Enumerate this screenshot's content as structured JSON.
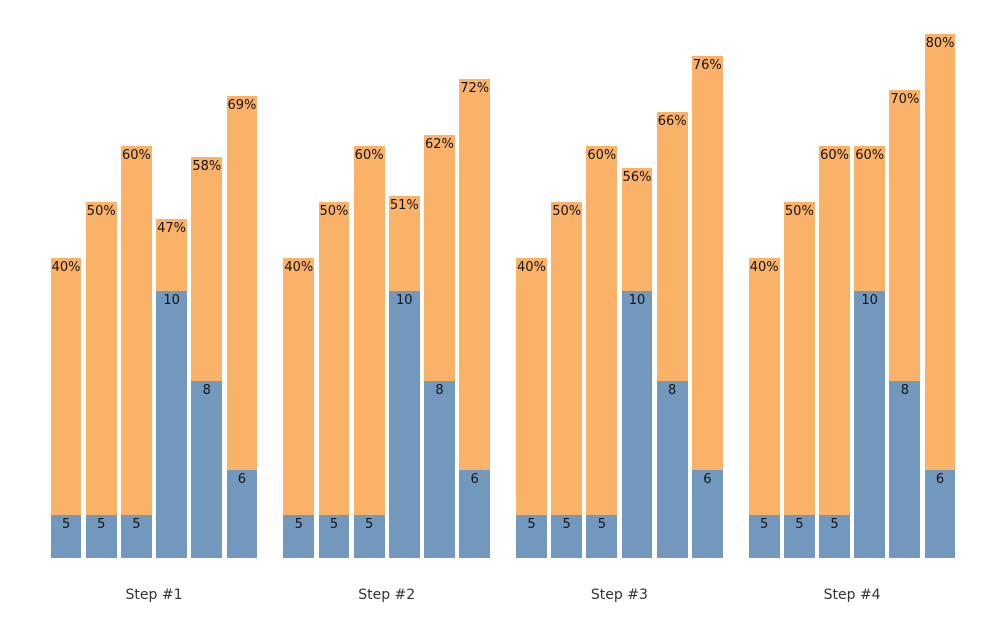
{
  "chart_data": {
    "type": "bar",
    "subtype": "grouped-stacked-dual-encoding",
    "title": "",
    "xlabel": "",
    "ylabel": "",
    "layout_hints": {
      "grid": false,
      "legend": false,
      "axes_visible": false,
      "background": "#ffffff",
      "bars_per_group": 6,
      "percent_range_shown": [
        40,
        80
      ]
    },
    "colors": {
      "count_segment": "#7299bd",
      "percent_segment": "#fab269",
      "segment_label": "#141414",
      "group_label": "#333333"
    },
    "groups": [
      {
        "label": "Step #1",
        "bars": [
          {
            "count": 5,
            "count_label": "5",
            "percent": 40,
            "percent_label": "40%"
          },
          {
            "count": 5,
            "count_label": "5",
            "percent": 50,
            "percent_label": "50%"
          },
          {
            "count": 5,
            "count_label": "5",
            "percent": 60,
            "percent_label": "60%"
          },
          {
            "count": 10,
            "count_label": "10",
            "percent": 47,
            "percent_label": "47%"
          },
          {
            "count": 8,
            "count_label": "8",
            "percent": 58,
            "percent_label": "58%"
          },
          {
            "count": 6,
            "count_label": "6",
            "percent": 69,
            "percent_label": "69%"
          }
        ]
      },
      {
        "label": "Step #2",
        "bars": [
          {
            "count": 5,
            "count_label": "5",
            "percent": 40,
            "percent_label": "40%"
          },
          {
            "count": 5,
            "count_label": "5",
            "percent": 50,
            "percent_label": "50%"
          },
          {
            "count": 5,
            "count_label": "5",
            "percent": 60,
            "percent_label": "60%"
          },
          {
            "count": 10,
            "count_label": "10",
            "percent": 51,
            "percent_label": "51%"
          },
          {
            "count": 8,
            "count_label": "8",
            "percent": 62,
            "percent_label": "62%"
          },
          {
            "count": 6,
            "count_label": "6",
            "percent": 72,
            "percent_label": "72%"
          }
        ]
      },
      {
        "label": "Step #3",
        "bars": [
          {
            "count": 5,
            "count_label": "5",
            "percent": 40,
            "percent_label": "40%"
          },
          {
            "count": 5,
            "count_label": "5",
            "percent": 50,
            "percent_label": "50%"
          },
          {
            "count": 5,
            "count_label": "5",
            "percent": 60,
            "percent_label": "60%"
          },
          {
            "count": 10,
            "count_label": "10",
            "percent": 56,
            "percent_label": "56%"
          },
          {
            "count": 8,
            "count_label": "8",
            "percent": 66,
            "percent_label": "66%"
          },
          {
            "count": 6,
            "count_label": "6",
            "percent": 76,
            "percent_label": "76%"
          }
        ]
      },
      {
        "label": "Step #4",
        "bars": [
          {
            "count": 5,
            "count_label": "5",
            "percent": 40,
            "percent_label": "40%"
          },
          {
            "count": 5,
            "count_label": "5",
            "percent": 50,
            "percent_label": "50%"
          },
          {
            "count": 5,
            "count_label": "5",
            "percent": 60,
            "percent_label": "60%"
          },
          {
            "count": 10,
            "count_label": "10",
            "percent": 60,
            "percent_label": "60%"
          },
          {
            "count": 8,
            "count_label": "8",
            "percent": 70,
            "percent_label": "70%"
          },
          {
            "count": 6,
            "count_label": "6",
            "percent": 80,
            "percent_label": "80%"
          }
        ]
      }
    ]
  }
}
